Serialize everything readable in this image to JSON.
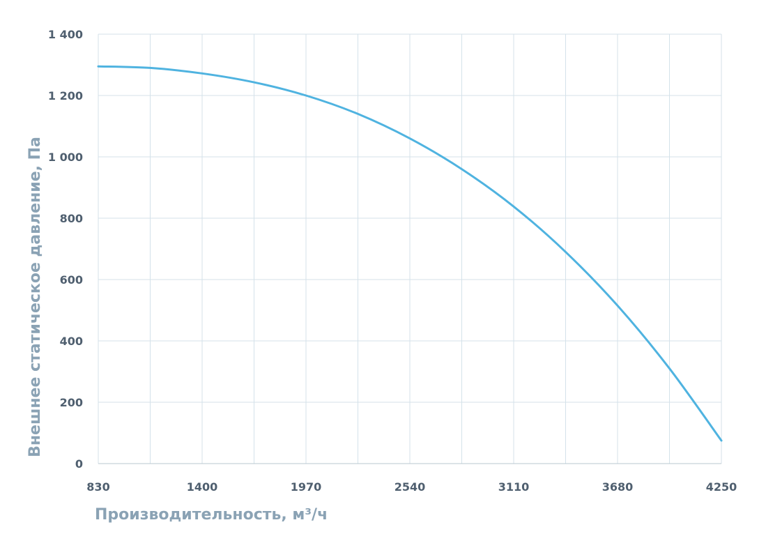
{
  "chart_data": {
    "type": "line",
    "title": "",
    "xlabel": "Производительность, м³/ч",
    "ylabel": "Внешнее  статическое  давление, Па",
    "xlim": [
      830,
      4250
    ],
    "ylim": [
      0,
      1400
    ],
    "x_ticks": [
      830,
      1400,
      1970,
      2540,
      3110,
      3680,
      4250
    ],
    "x_tick_labels": [
      "830",
      "1400",
      "1970",
      "2540",
      "3110",
      "3680",
      "4250"
    ],
    "x_minor_gridlines": [
      1115,
      1685,
      2255,
      2825,
      3395,
      3965
    ],
    "y_ticks": [
      0,
      200,
      400,
      600,
      800,
      1000,
      1200,
      1400
    ],
    "y_tick_labels": [
      "0",
      "200",
      "400",
      "600",
      "800",
      "1 000",
      "1 200",
      "1 400"
    ],
    "grid": true,
    "legend": "none",
    "series": [
      {
        "color": "#4fb3e0",
        "points": [
          [
            830,
            1295
          ],
          [
            1115,
            1290
          ],
          [
            1400,
            1272
          ],
          [
            1685,
            1243
          ],
          [
            1970,
            1200
          ],
          [
            2255,
            1140
          ],
          [
            2540,
            1060
          ],
          [
            2825,
            960
          ],
          [
            3110,
            838
          ],
          [
            3395,
            690
          ],
          [
            3680,
            515
          ],
          [
            3965,
            310
          ],
          [
            4250,
            75
          ]
        ]
      }
    ]
  }
}
